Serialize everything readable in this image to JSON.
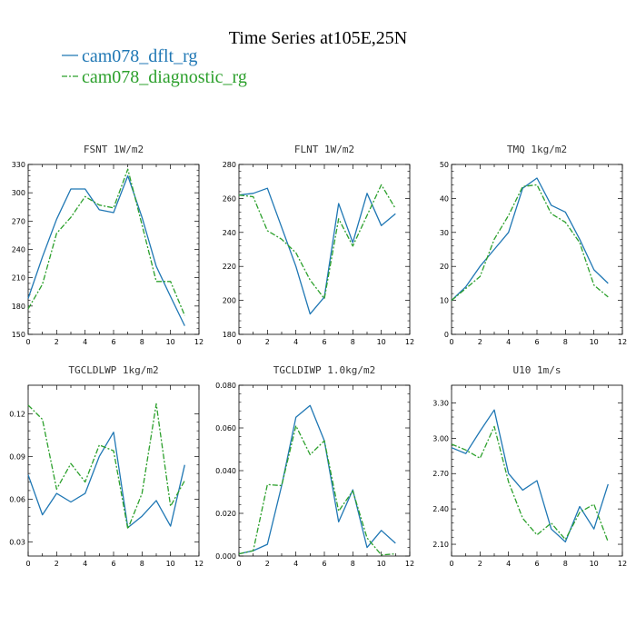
{
  "figure": {
    "title": "Time Series at105E,25N",
    "legend": [
      {
        "label": "cam078_dflt_rg",
        "color": "#1f77b4",
        "dash": "solid"
      },
      {
        "label": "cam078_diagnostic_rg",
        "color": "#2ca02c",
        "dash": "dashed"
      }
    ]
  },
  "chart_data": [
    {
      "type": "line",
      "title": "FSNT  1W/m2",
      "x": [
        0,
        1,
        2,
        3,
        4,
        5,
        6,
        7,
        8,
        9,
        10,
        11
      ],
      "xlim": [
        0,
        12
      ],
      "xticks": [
        0,
        2,
        4,
        6,
        8,
        10,
        12
      ],
      "ylim": [
        150,
        330
      ],
      "yticks": [
        150,
        180,
        210,
        240,
        270,
        300,
        330
      ],
      "ytick_labels": [
        "150",
        "180",
        "210",
        "240",
        "270",
        "300",
        "330"
      ],
      "series": [
        {
          "name": "cam078_dflt_rg",
          "values": [
            188,
            232,
            272,
            304,
            304,
            282,
            279,
            318,
            274,
            222,
            190,
            159
          ]
        },
        {
          "name": "cam078_diagnostic_rg",
          "values": [
            177,
            203,
            257,
            274,
            296,
            287,
            284,
            325,
            266,
            206,
            206,
            170
          ]
        }
      ]
    },
    {
      "type": "line",
      "title": "FLNT  1W/m2",
      "x": [
        0,
        1,
        2,
        3,
        4,
        5,
        6,
        7,
        8,
        9,
        10,
        11
      ],
      "xlim": [
        0,
        12
      ],
      "xticks": [
        0,
        2,
        4,
        6,
        8,
        10,
        12
      ],
      "ylim": [
        180,
        280
      ],
      "yticks": [
        180,
        200,
        220,
        240,
        260,
        280
      ],
      "ytick_labels": [
        "180",
        "200",
        "220",
        "240",
        "260",
        "280"
      ],
      "series": [
        {
          "name": "cam078_dflt_rg",
          "values": [
            262,
            263,
            266,
            243,
            220,
            192,
            202,
            257,
            234,
            263,
            244,
            251
          ]
        },
        {
          "name": "cam078_diagnostic_rg",
          "values": [
            262,
            261,
            241,
            236,
            228,
            212,
            201,
            248,
            232,
            250,
            268,
            254
          ]
        }
      ]
    },
    {
      "type": "line",
      "title": "TMQ  1kg/m2",
      "x": [
        0,
        1,
        2,
        3,
        4,
        5,
        6,
        7,
        8,
        9,
        10,
        11
      ],
      "xlim": [
        0,
        12
      ],
      "xticks": [
        0,
        2,
        4,
        6,
        8,
        10,
        12
      ],
      "ylim": [
        0,
        50
      ],
      "yticks": [
        0,
        10,
        20,
        30,
        40,
        50
      ],
      "ytick_labels": [
        "0",
        "10",
        "20",
        "30",
        "40",
        "50"
      ],
      "series": [
        {
          "name": "cam078_dflt_rg",
          "values": [
            10,
            14,
            20,
            25,
            30,
            43,
            46,
            38,
            36,
            28,
            19,
            15
          ]
        },
        {
          "name": "cam078_diagnostic_rg",
          "values": [
            10,
            13.5,
            17,
            28,
            35,
            43.5,
            44,
            35.5,
            33,
            27,
            14.5,
            11
          ]
        }
      ]
    },
    {
      "type": "line",
      "title": "TGCLDLWP  1kg/m2",
      "x": [
        0,
        1,
        2,
        3,
        4,
        5,
        6,
        7,
        8,
        9,
        10,
        11
      ],
      "xlim": [
        0,
        12
      ],
      "xticks": [
        0,
        2,
        4,
        6,
        8,
        10,
        12
      ],
      "ylim": [
        0.02,
        0.14
      ],
      "yticks": [
        0.03,
        0.06,
        0.09,
        0.12
      ],
      "ytick_labels": [
        "0.03",
        "0.06",
        "0.09",
        "0.12"
      ],
      "series": [
        {
          "name": "cam078_dflt_rg",
          "values": [
            0.077,
            0.049,
            0.064,
            0.058,
            0.064,
            0.09,
            0.107,
            0.04,
            0.048,
            0.059,
            0.041,
            0.084
          ]
        },
        {
          "name": "cam078_diagnostic_rg",
          "values": [
            0.126,
            0.116,
            0.067,
            0.085,
            0.072,
            0.098,
            0.094,
            0.039,
            0.064,
            0.127,
            0.055,
            0.073
          ]
        }
      ]
    },
    {
      "type": "line",
      "title": "TGCLDIWP  1.0kg/m2",
      "x": [
        0,
        1,
        2,
        3,
        4,
        5,
        6,
        7,
        8,
        9,
        10,
        11
      ],
      "xlim": [
        0,
        12
      ],
      "xticks": [
        0,
        2,
        4,
        6,
        8,
        10,
        12
      ],
      "ylim": [
        0,
        0.08
      ],
      "yticks": [
        0,
        0.02,
        0.04,
        0.06,
        0.08
      ],
      "ytick_labels": [
        "0.000",
        "0.020",
        "0.040",
        "0.060",
        "0.080"
      ],
      "series": [
        {
          "name": "cam078_dflt_rg",
          "values": [
            0.001,
            0.0025,
            0.0055,
            0.033,
            0.065,
            0.0705,
            0.054,
            0.016,
            0.031,
            0.004,
            0.012,
            0.006
          ]
        },
        {
          "name": "cam078_diagnostic_rg",
          "values": [
            0.001,
            0.0025,
            0.0335,
            0.033,
            0.061,
            0.0475,
            0.054,
            0.021,
            0.0305,
            0.0085,
            0.0005,
            0.001
          ]
        }
      ]
    },
    {
      "type": "line",
      "title": "U10  1m/s",
      "x": [
        0,
        1,
        2,
        3,
        4,
        5,
        6,
        7,
        8,
        9,
        10,
        11
      ],
      "xlim": [
        0,
        12
      ],
      "xticks": [
        0,
        2,
        4,
        6,
        8,
        10,
        12
      ],
      "ylim": [
        2.0,
        3.45
      ],
      "yticks": [
        2.1,
        2.4,
        2.7,
        3.0,
        3.3
      ],
      "ytick_labels": [
        "2.10",
        "2.40",
        "2.70",
        "3.00",
        "3.30"
      ],
      "series": [
        {
          "name": "cam078_dflt_rg",
          "values": [
            2.92,
            2.87,
            3.06,
            3.24,
            2.7,
            2.56,
            2.64,
            2.23,
            2.12,
            2.42,
            2.23,
            2.61
          ]
        },
        {
          "name": "cam078_diagnostic_rg",
          "values": [
            2.95,
            2.9,
            2.83,
            3.1,
            2.63,
            2.32,
            2.18,
            2.28,
            2.14,
            2.37,
            2.44,
            2.12
          ]
        }
      ]
    }
  ]
}
